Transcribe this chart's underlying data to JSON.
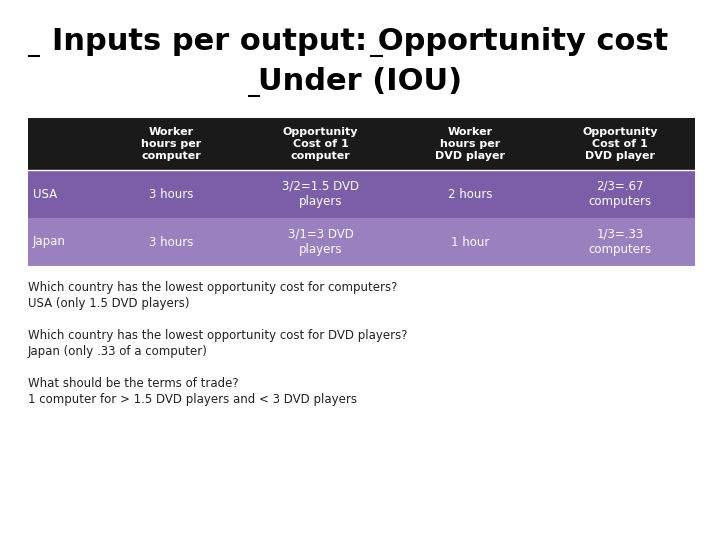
{
  "title_line1": "Inputs per output: Opportunity cost",
  "title_line2": "Under (IOU)",
  "bg_color": "#ffffff",
  "header_bg": "#1a1a1a",
  "row1_bg": "#7b5ea7",
  "row2_bg": "#9b80c0",
  "header_text_color": "#ffffff",
  "row_text_color": "#ffffff",
  "body_text_color": "#222222",
  "col_headers": [
    "Worker\nhours per\ncomputer",
    "Opportunity\nCost of 1\ncomputer",
    "Worker\nhours per\nDVD player",
    "Opportunity\nCost of 1\nDVD player"
  ],
  "row_labels": [
    "USA",
    "Japan"
  ],
  "table_data": [
    [
      "3 hours",
      "3/2=1.5 DVD\nplayers",
      "2 hours",
      "2/3=.67\ncomputers"
    ],
    [
      "3 hours",
      "3/1=3 DVD\nplayers",
      "1 hour",
      "1/3=.33\ncomputers"
    ]
  ],
  "body_texts": [
    "Which country has the lowest opportunity cost for computers?",
    "USA (only 1.5 DVD players)",
    "",
    "Which country has the lowest opportunity cost for DVD players?",
    "Japan (only .33 of a computer)",
    "",
    "What should be the terms of trade?",
    "1 computer for > 1.5 DVD players and < 3 DVD players"
  ]
}
